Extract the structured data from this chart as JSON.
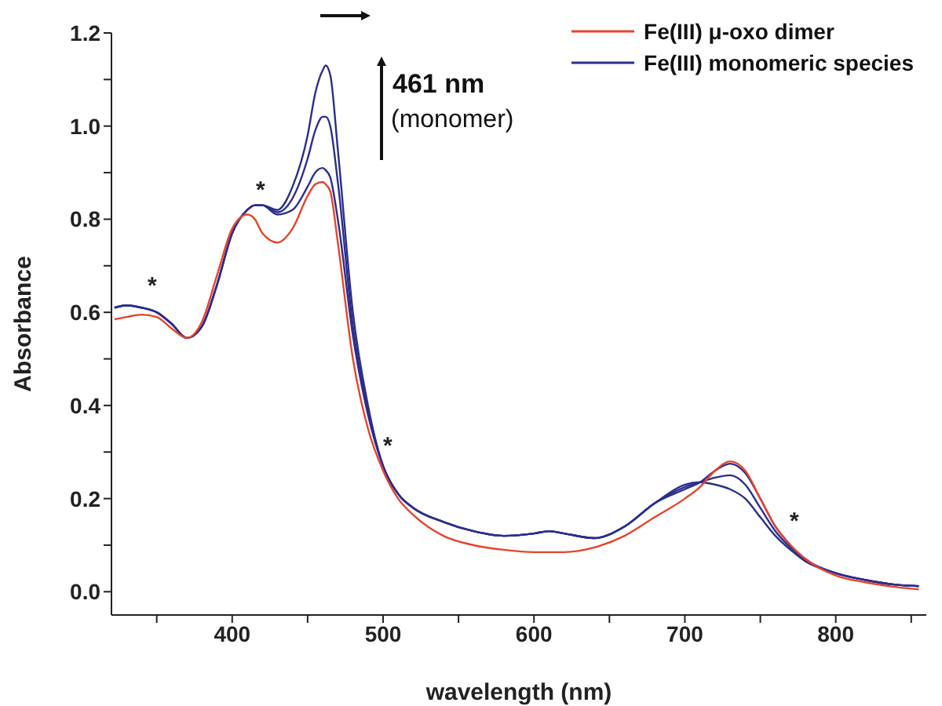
{
  "chart_data": {
    "type": "line",
    "xlabel": "wavelength (nm)",
    "ylabel": "Absorbance",
    "legend": "top right",
    "marker": "none",
    "line_style": "solid",
    "xlim": [
      320,
      860
    ],
    "xticks": [
      {
        "value": 350,
        "label": null
      },
      400,
      {
        "value": 450,
        "label": null
      },
      500,
      {
        "value": 550,
        "label": null
      },
      600,
      {
        "value": 650,
        "label": null
      },
      700,
      {
        "value": 750,
        "label": null
      },
      800,
      {
        "value": 850,
        "label": null
      }
    ],
    "ylim": [
      -0.05,
      1.2
    ],
    "yticks": [
      {
        "value": 0,
        "label": "0.0"
      },
      {
        "value": 0.1,
        "label": null
      },
      {
        "value": 0.2,
        "label": "0.2"
      },
      {
        "value": 0.3,
        "label": null
      },
      {
        "value": 0.4,
        "label": "0.4"
      },
      {
        "value": 0.5,
        "label": null
      },
      {
        "value": 0.6,
        "label": "0.6"
      },
      {
        "value": 0.7,
        "label": null
      },
      {
        "value": 0.8,
        "label": "0.8"
      },
      {
        "value": 0.9,
        "label": null
      },
      {
        "value": 1,
        "label": "1.0"
      },
      {
        "value": 1.1,
        "label": null
      },
      {
        "value": 1.2,
        "label": "1.2"
      }
    ],
    "x": [
      322,
      330,
      340,
      350,
      360,
      370,
      380,
      390,
      400,
      410,
      415,
      420,
      430,
      440,
      450,
      455,
      460,
      462,
      465,
      470,
      480,
      490,
      500,
      510,
      520,
      540,
      560,
      580,
      600,
      610,
      620,
      640,
      660,
      680,
      700,
      710,
      720,
      730,
      740,
      750,
      760,
      770,
      780,
      800,
      820,
      840,
      855
    ],
    "series": [
      {
        "name": "Fe(III) monomeric species",
        "color": "#2b2e8c",
        "values": [
          0.61,
          0.615,
          0.61,
          0.6,
          0.575,
          0.545,
          0.57,
          0.66,
          0.77,
          0.82,
          0.83,
          0.83,
          0.81,
          0.82,
          0.87,
          0.9,
          0.91,
          0.905,
          0.89,
          0.8,
          0.55,
          0.38,
          0.27,
          0.21,
          0.18,
          0.15,
          0.13,
          0.12,
          0.125,
          0.13,
          0.125,
          0.115,
          0.14,
          0.19,
          0.22,
          0.235,
          0.26,
          0.275,
          0.255,
          0.2,
          0.14,
          0.1,
          0.07,
          0.04,
          0.025,
          0.015,
          0.012
        ]
      },
      {
        "color": "#2b2e8c",
        "values": [
          0.61,
          0.615,
          0.61,
          0.6,
          0.575,
          0.545,
          0.57,
          0.66,
          0.77,
          0.82,
          0.83,
          0.83,
          0.815,
          0.845,
          0.93,
          0.99,
          1.02,
          1.02,
          1.0,
          0.88,
          0.57,
          0.39,
          0.27,
          0.21,
          0.18,
          0.15,
          0.13,
          0.12,
          0.125,
          0.13,
          0.125,
          0.115,
          0.14,
          0.19,
          0.225,
          0.235,
          0.245,
          0.25,
          0.23,
          0.18,
          0.13,
          0.095,
          0.068,
          0.04,
          0.025,
          0.015,
          0.012
        ]
      },
      {
        "color": "#2b2e8c",
        "values": [
          0.61,
          0.615,
          0.61,
          0.6,
          0.575,
          0.545,
          0.57,
          0.66,
          0.77,
          0.82,
          0.83,
          0.83,
          0.82,
          0.87,
          0.98,
          1.07,
          1.12,
          1.13,
          1.11,
          0.95,
          0.6,
          0.4,
          0.27,
          0.21,
          0.18,
          0.15,
          0.13,
          0.12,
          0.125,
          0.13,
          0.125,
          0.115,
          0.14,
          0.19,
          0.23,
          0.235,
          0.23,
          0.22,
          0.2,
          0.16,
          0.12,
          0.09,
          0.065,
          0.04,
          0.025,
          0.015,
          0.012
        ]
      },
      {
        "name": "Fe(III) μ-oxo dimer",
        "color": "#e8432b",
        "values": [
          0.585,
          0.59,
          0.595,
          0.59,
          0.565,
          0.545,
          0.58,
          0.68,
          0.78,
          0.81,
          0.8,
          0.77,
          0.75,
          0.78,
          0.85,
          0.875,
          0.88,
          0.875,
          0.86,
          0.75,
          0.5,
          0.35,
          0.26,
          0.2,
          0.165,
          0.12,
          0.1,
          0.09,
          0.085,
          0.085,
          0.085,
          0.095,
          0.12,
          0.16,
          0.2,
          0.225,
          0.26,
          0.28,
          0.26,
          0.2,
          0.14,
          0.1,
          0.07,
          0.035,
          0.02,
          0.01,
          0.005
        ]
      }
    ],
    "annotations": [
      "461 nm",
      "(monomer)",
      "*",
      "*",
      "*",
      "*"
    ]
  }
}
